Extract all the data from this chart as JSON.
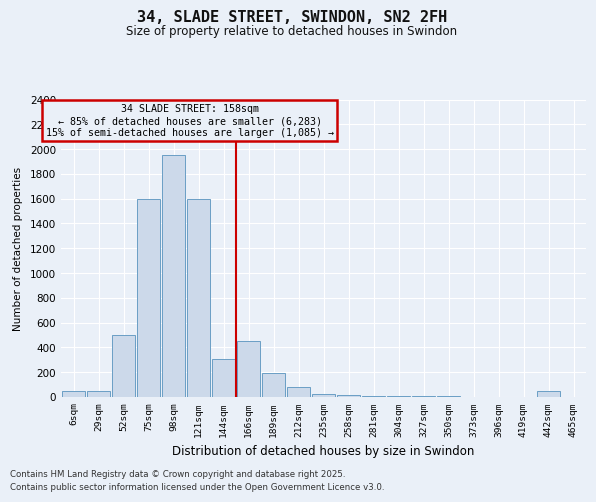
{
  "title": "34, SLADE STREET, SWINDON, SN2 2FH",
  "subtitle": "Size of property relative to detached houses in Swindon",
  "xlabel": "Distribution of detached houses by size in Swindon",
  "ylabel": "Number of detached properties",
  "categories": [
    "6sqm",
    "29sqm",
    "52sqm",
    "75sqm",
    "98sqm",
    "121sqm",
    "144sqm",
    "166sqm",
    "189sqm",
    "212sqm",
    "235sqm",
    "258sqm",
    "281sqm",
    "304sqm",
    "327sqm",
    "350sqm",
    "373sqm",
    "396sqm",
    "419sqm",
    "442sqm",
    "465sqm"
  ],
  "values": [
    50,
    50,
    500,
    1600,
    1950,
    1600,
    310,
    450,
    190,
    80,
    25,
    20,
    10,
    10,
    5,
    5,
    3,
    3,
    3,
    50,
    3
  ],
  "bar_color": "#ccd9ea",
  "bar_edge_color": "#6a9ec5",
  "property_line_x": 6.5,
  "property_line_color": "#cc0000",
  "annotation_text": "34 SLADE STREET: 158sqm\n← 85% of detached houses are smaller (6,283)\n15% of semi-detached houses are larger (1,085) →",
  "annotation_box_color": "#cc0000",
  "ylim": [
    0,
    2400
  ],
  "yticks": [
    0,
    200,
    400,
    600,
    800,
    1000,
    1200,
    1400,
    1600,
    1800,
    2000,
    2200,
    2400
  ],
  "background_color": "#eaf0f8",
  "grid_color": "#ffffff",
  "footer_line1": "Contains HM Land Registry data © Crown copyright and database right 2025.",
  "footer_line2": "Contains public sector information licensed under the Open Government Licence v3.0."
}
